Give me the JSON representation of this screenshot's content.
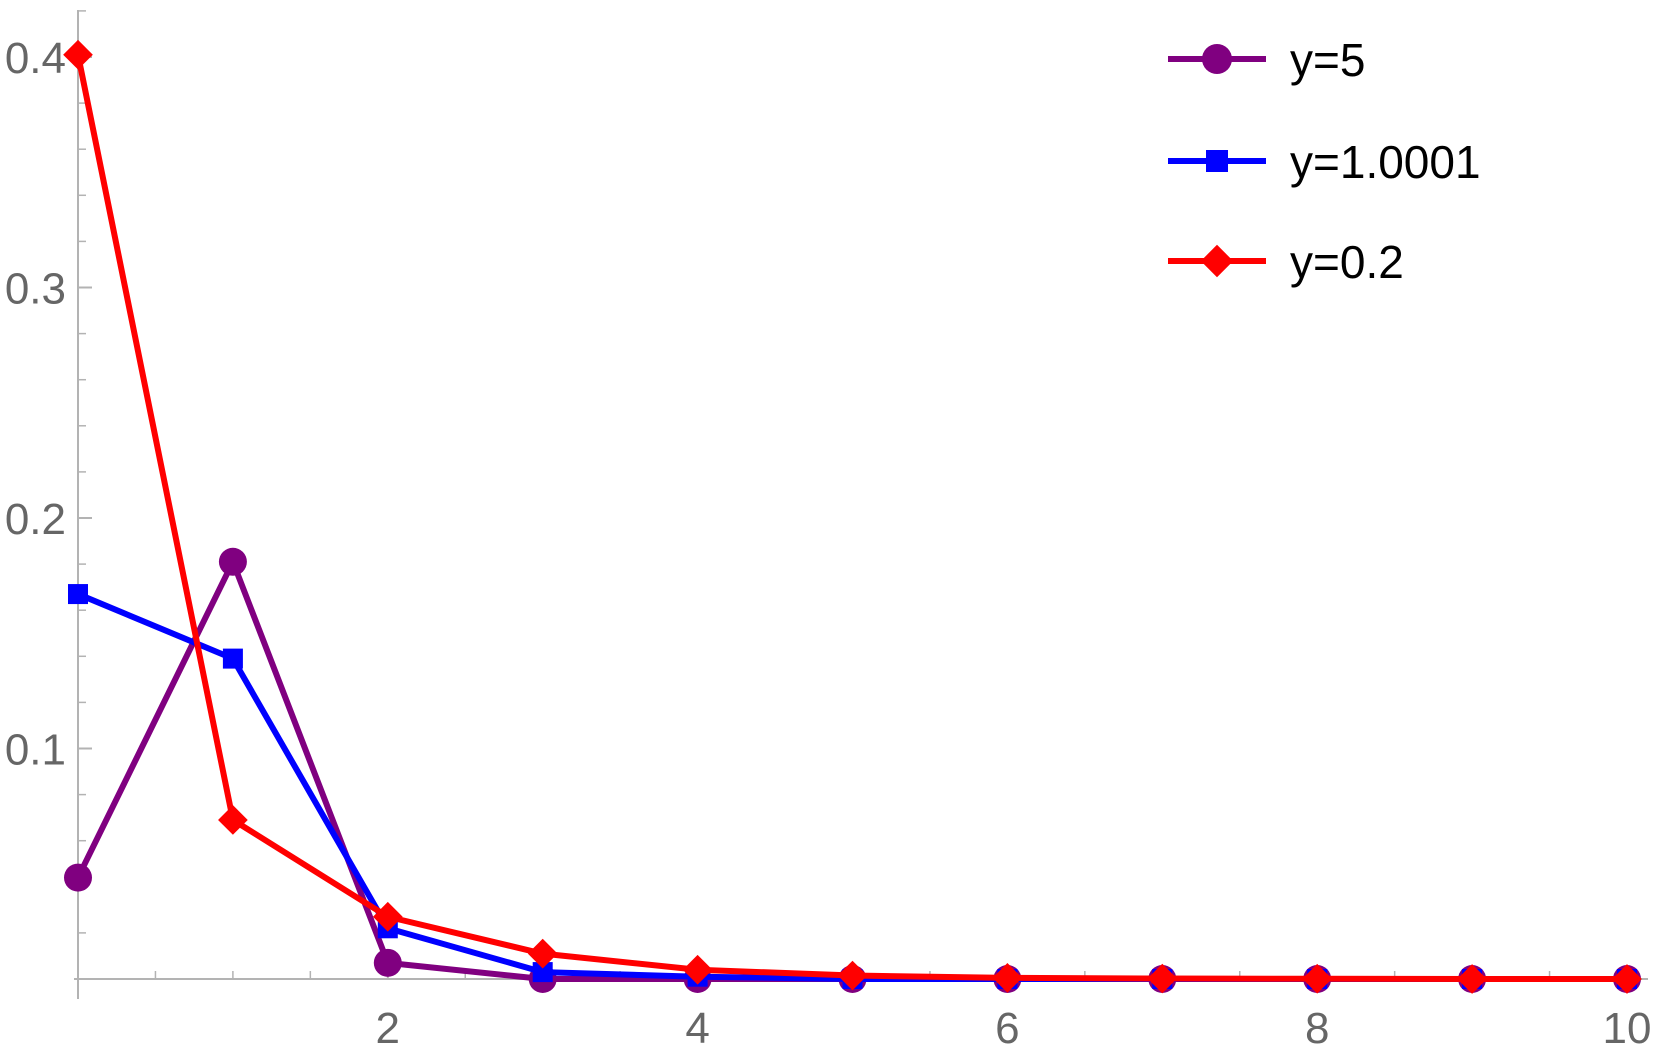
{
  "chart_data": {
    "type": "line",
    "title": "",
    "xlabel": "",
    "ylabel": "",
    "xlim": [
      0,
      10.15
    ],
    "ylim": [
      0,
      0.405
    ],
    "x": [
      0,
      1,
      2,
      3,
      4,
      5,
      6,
      7,
      8,
      9,
      10
    ],
    "x_ticks": [
      2,
      4,
      6,
      8,
      10
    ],
    "x_tick_labels": [
      "2",
      "4",
      "6",
      "8",
      "10"
    ],
    "x_minor_ticks": [
      0.5,
      1,
      1.5,
      2.5,
      3,
      3.5,
      4.5,
      5,
      5.5,
      6.5,
      7,
      7.5,
      8.5,
      9,
      9.5
    ],
    "y_ticks": [
      0.1,
      0.2,
      0.3,
      0.4
    ],
    "y_tick_labels": [
      "0.1",
      "0.2",
      "0.3",
      "0.4"
    ],
    "y_minor_ticks": [
      0.02,
      0.04,
      0.06,
      0.08,
      0.12,
      0.14,
      0.16,
      0.18,
      0.22,
      0.24,
      0.26,
      0.28,
      0.32,
      0.34,
      0.36,
      0.38,
      0.42
    ],
    "grid": false,
    "legend_position": "top-right",
    "series": [
      {
        "name": "y=5",
        "marker": "circle",
        "color": "#800080",
        "values": [
          0.044,
          0.181,
          0.007,
          0.0,
          0.0,
          0.0,
          0.0,
          0.0,
          0.0,
          0.0,
          0.0
        ]
      },
      {
        "name": "y=1.0001",
        "marker": "square",
        "color": "#0000ff",
        "values": [
          0.167,
          0.139,
          0.022,
          0.003,
          0.001,
          0.0,
          0.0,
          0.0,
          0.0,
          0.0,
          0.0
        ]
      },
      {
        "name": "y=0.2",
        "marker": "diamond",
        "color": "#ff0000",
        "values": [
          0.401,
          0.069,
          0.027,
          0.011,
          0.004,
          0.0015,
          0.0005,
          0.0002,
          0.0001,
          0.0,
          0.0
        ]
      }
    ]
  }
}
